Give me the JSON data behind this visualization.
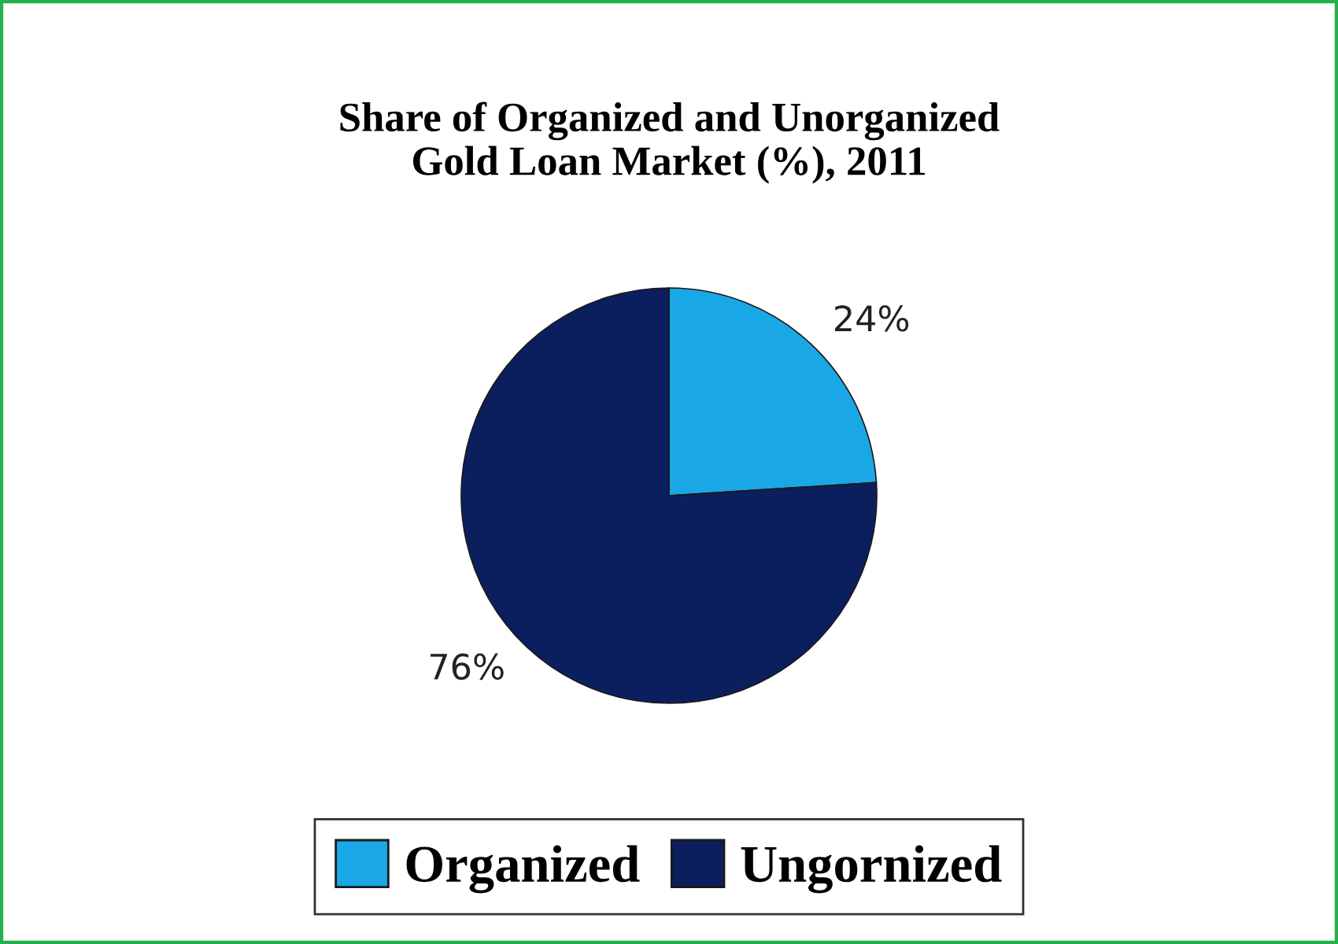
{
  "chart_data": {
    "type": "pie",
    "title": "Share of Organized and Unorganized\nGold Loan Market (%), 2011",
    "categories": [
      "Organized",
      "Ungornized"
    ],
    "values": [
      24,
      76
    ],
    "colors": [
      "#1aa7e6",
      "#0b1f5e"
    ],
    "value_labels": [
      "24%",
      "76%"
    ],
    "legend": "bottom"
  }
}
